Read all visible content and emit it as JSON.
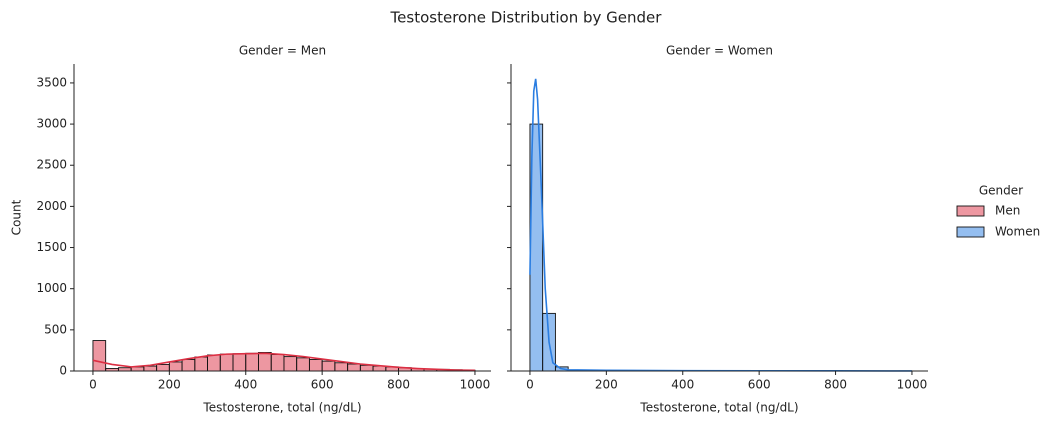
{
  "chart_data": {
    "type": "histogram",
    "title": "Testosterone Distribution by Gender",
    "legend_title": "Gender",
    "xlim": [
      -49.6,
      1042
    ],
    "ylim": [
      0,
      3730
    ],
    "xticks": [
      0,
      200,
      400,
      600,
      800,
      1000
    ],
    "yticks": [
      0,
      500,
      1000,
      1500,
      2000,
      2500,
      3000,
      3500
    ],
    "bins": [
      0,
      33.3,
      66.7,
      100,
      133.3,
      166.7,
      200,
      233.3,
      266.7,
      300,
      333.3,
      366.7,
      400,
      433.3,
      466.7,
      500,
      533.3,
      566.7,
      600,
      633.3,
      666.7,
      700,
      733.3,
      766.7,
      800,
      833.3,
      866.7,
      900,
      933.3,
      966.7,
      1000
    ],
    "panels": [
      {
        "title": "Gender = Men",
        "xlabel": "Testosterone, total (ng/dL)",
        "ylabel": "Count",
        "series": [
          {
            "name": "Men",
            "color": "#dc2f43",
            "values": [
              370,
              30,
              40,
              50,
              60,
              80,
              110,
              140,
              170,
              195,
              205,
              210,
              215,
              225,
              200,
              175,
              160,
              140,
              120,
              100,
              85,
              70,
              60,
              50,
              40,
              30,
              25,
              20,
              15,
              10
            ],
            "kde_x": [
              0,
              50,
              100,
              150,
              200,
              250,
              300,
              350,
              400,
              450,
              500,
              550,
              600,
              650,
              700,
              750,
              800,
              850,
              900,
              950,
              1000
            ],
            "kde": [
              130,
              80,
              50,
              70,
              110,
              150,
              185,
              205,
              210,
              215,
              200,
              175,
              145,
              115,
              85,
              65,
              45,
              30,
              20,
              12,
              8
            ]
          }
        ]
      },
      {
        "title": "Gender = Women",
        "xlabel": "Testosterone, total (ng/dL)",
        "series": [
          {
            "name": "Women",
            "color": "#2a7de1",
            "values": [
              3000,
              700,
              50,
              10,
              5,
              3,
              2,
              2,
              1,
              1,
              1,
              1,
              1,
              0,
              0,
              0,
              0,
              0,
              0,
              0,
              0,
              0,
              0,
              0,
              0,
              0,
              0,
              0,
              0,
              1
            ],
            "kde_x": [
              0,
              5,
              10,
              15,
              20,
              30,
              40,
              50,
              60,
              80,
              100,
              200,
              400,
              600,
              800,
              1000
            ],
            "kde": [
              1170,
              2600,
              3400,
              3550,
              3300,
              2200,
              1000,
              350,
              100,
              30,
              15,
              8,
              4,
              3,
              2,
              1
            ]
          }
        ]
      }
    ]
  }
}
